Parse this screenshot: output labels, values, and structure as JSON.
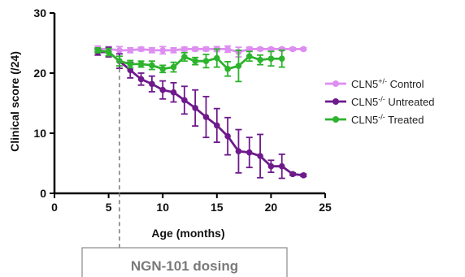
{
  "chart_data": {
    "type": "line",
    "xlabel": "Age (months)",
    "ylabel": "Clinical score (/24)",
    "xlim": [
      0,
      25
    ],
    "ylim": [
      0,
      30
    ],
    "x_ticks": [
      "0",
      "5",
      "10",
      "15",
      "20",
      "25"
    ],
    "y_ticks": [
      "0",
      "10",
      "20",
      "30"
    ],
    "legend_position": "right",
    "series": [
      {
        "name_parts": [
          "CLN5",
          "+/-",
          " Control"
        ],
        "color": "#dd8ef0",
        "x": [
          4,
          5,
          6,
          7,
          8,
          9,
          10,
          11,
          12,
          13,
          14,
          15,
          16,
          17,
          18,
          19,
          20,
          21,
          22,
          23
        ],
        "y": [
          24,
          24,
          23.8,
          23.8,
          24,
          23.8,
          23.8,
          23.8,
          24,
          24,
          24,
          24,
          24,
          23.5,
          24,
          24,
          24,
          24,
          24,
          24
        ],
        "err": [
          0.5,
          0.4,
          0.6,
          0.4,
          0.3,
          0.4,
          0.6,
          0.4,
          0.3,
          0.3,
          0.3,
          0.4,
          0.5,
          0.8,
          0.3,
          0.2,
          0.2,
          0.2,
          0.2,
          0.2
        ]
      },
      {
        "name_parts": [
          "CLN5",
          "-/-",
          " Untreated"
        ],
        "color": "#6e1a8c",
        "x": [
          4,
          5,
          6,
          7,
          8,
          9,
          10,
          11,
          12,
          13,
          14,
          15,
          16,
          17,
          18,
          19,
          20,
          21,
          22,
          23
        ],
        "y": [
          23.5,
          23.5,
          22,
          20.5,
          19,
          18.2,
          17.2,
          16.8,
          15.5,
          14.2,
          12.7,
          11.3,
          9.5,
          7,
          6.8,
          6.2,
          4.5,
          4.5,
          3.2,
          3
        ],
        "err": [
          0.5,
          0.8,
          1.2,
          1.3,
          1.0,
          1.3,
          1.5,
          1.6,
          2.3,
          3.0,
          3.4,
          2.8,
          3.1,
          3.6,
          2.5,
          3.6,
          1.0,
          2.0,
          0.2,
          0.2
        ]
      },
      {
        "name_parts": [
          "CLN5",
          "-/-",
          " Treated"
        ],
        "color": "#2db32d",
        "x": [
          4,
          5,
          6,
          7,
          8,
          9,
          10,
          11,
          12,
          13,
          14,
          15,
          16,
          17,
          18,
          19,
          20,
          21
        ],
        "y": [
          23.8,
          23.5,
          22,
          21.5,
          21.5,
          21.3,
          20.7,
          21,
          22.7,
          22,
          22,
          22.5,
          20.7,
          21.2,
          22.8,
          22.2,
          22.4,
          22.4
        ],
        "err": [
          0.4,
          0.6,
          0.8,
          0.6,
          0.5,
          0.7,
          0.6,
          0.8,
          0.7,
          0.6,
          1.1,
          1.5,
          1.2,
          2.6,
          0.8,
          0.8,
          1.2,
          1.4
        ]
      }
    ],
    "annotation": {
      "label": "NGN-101 dosing",
      "x": 6
    }
  }
}
